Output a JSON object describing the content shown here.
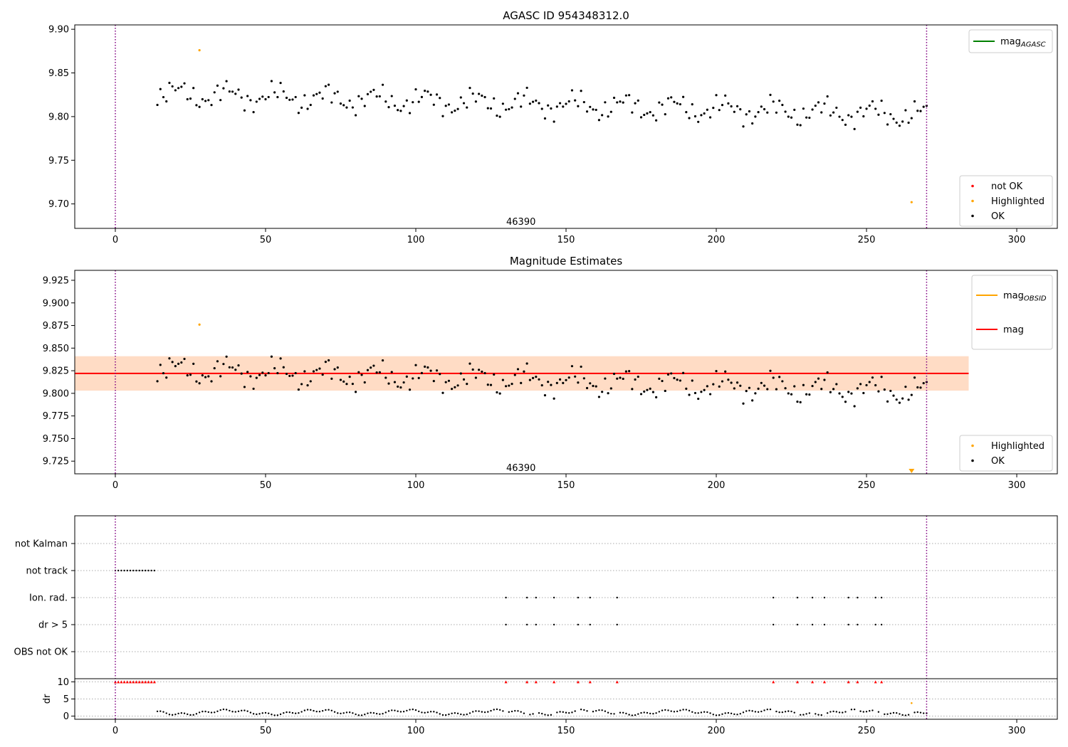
{
  "colors": {
    "ok": "#000000",
    "highlighted": "#ffa500",
    "not_ok": "#ff0000",
    "mag_agasc": "#008000",
    "mag_obsid": "#ffa500",
    "mag": "#ff0000",
    "band_outer": "#ffc0cb",
    "band_inner": "#ffdab9",
    "vline": "#800080"
  },
  "chart_data": [
    {
      "type": "scatter",
      "title": "AGASC ID 954348312.0",
      "xlim": [
        -13.5,
        313.5
      ],
      "ylim": [
        9.672,
        9.905
      ],
      "xticks": [
        0,
        50,
        100,
        150,
        200,
        250,
        300
      ],
      "yticks": [
        "9.70",
        "9.75",
        "9.80",
        "9.85",
        "9.90"
      ],
      "vlines": [
        0,
        270
      ],
      "annotation": {
        "text": "46390",
        "x": 135,
        "y": 9.676
      },
      "legend_upper": [
        {
          "label": "mag",
          "sub": "AGASC",
          "kind": "line",
          "color": "#008000"
        }
      ],
      "legend_lower": [
        {
          "label": "not OK",
          "kind": "dot",
          "color": "#ff0000"
        },
        {
          "label": "Highlighted",
          "kind": "dot",
          "color": "#ffa500"
        },
        {
          "label": "OK",
          "kind": "dot",
          "color": "#000000"
        }
      ],
      "series": [
        {
          "name": "Highlighted",
          "points": [
            [
              28,
              9.876
            ],
            [
              265,
              9.702
            ]
          ]
        },
        {
          "name": "OK",
          "trace": "mag"
        }
      ]
    },
    {
      "type": "scatter",
      "title": "Magnitude Estimates",
      "xlim": [
        -13.5,
        313.5
      ],
      "ylim": [
        9.711,
        9.936
      ],
      "xticks": [
        0,
        50,
        100,
        150,
        200,
        250,
        300
      ],
      "yticks": [
        "9.725",
        "9.750",
        "9.775",
        "9.800",
        "9.825",
        "9.850",
        "9.875",
        "9.900",
        "9.925"
      ],
      "vlines": [
        0,
        270
      ],
      "annotation": {
        "text": "46390",
        "x": 135,
        "y": 9.714
      },
      "mag": 9.822,
      "band": [
        9.803,
        9.841
      ],
      "band_x": [
        -13.5,
        284
      ],
      "legend_upper": [
        {
          "label": "mag",
          "sub": "OBSID",
          "kind": "line",
          "color": "#ffa500"
        },
        {
          "label": "mag",
          "kind": "line",
          "color": "#ff0000"
        }
      ],
      "legend_lower": [
        {
          "label": "Highlighted",
          "kind": "dot",
          "color": "#ffa500"
        },
        {
          "label": "OK",
          "kind": "dot",
          "color": "#000000"
        }
      ],
      "series": [
        {
          "name": "Highlighted",
          "points": [
            [
              28,
              9.876
            ]
          ],
          "offscale_marker": [
            265
          ]
        },
        {
          "name": "OK",
          "trace": "mag"
        }
      ]
    },
    {
      "type": "scatter",
      "xlim": [
        -13.5,
        313.5
      ],
      "xticks": [
        0,
        50,
        100,
        150,
        200,
        250,
        300
      ],
      "flag_labels": [
        "not Kalman",
        "not track",
        "Ion. rad.",
        "dr > 5",
        "OBS not OK"
      ],
      "flags": {
        "not track": [
          0,
          1,
          2,
          3,
          4,
          5,
          6,
          7,
          8,
          9,
          10,
          11,
          12,
          13
        ],
        "Ion. rad.": [
          130,
          137,
          140,
          146,
          154,
          158,
          167,
          219,
          227,
          232,
          236,
          244,
          247,
          253,
          255
        ],
        "dr > 5": [
          130,
          137,
          140,
          146,
          154,
          158,
          167,
          219,
          227,
          232,
          236,
          244,
          247,
          253,
          255
        ]
      },
      "dr_label": "dr",
      "dr_yticks": [
        "0",
        "5",
        "10"
      ],
      "dr_ylim": [
        -0.5,
        10.5
      ],
      "dr_clip": [
        0,
        1,
        2,
        3,
        4,
        5,
        6,
        7,
        8,
        9,
        10,
        11,
        12,
        13,
        130,
        137,
        140,
        146,
        154,
        158,
        167,
        219,
        227,
        232,
        236,
        244,
        247,
        253,
        255
      ],
      "dr_highlight": [
        [
          265,
          3.8
        ]
      ],
      "dr_dense_range": [
        14,
        270
      ]
    }
  ]
}
